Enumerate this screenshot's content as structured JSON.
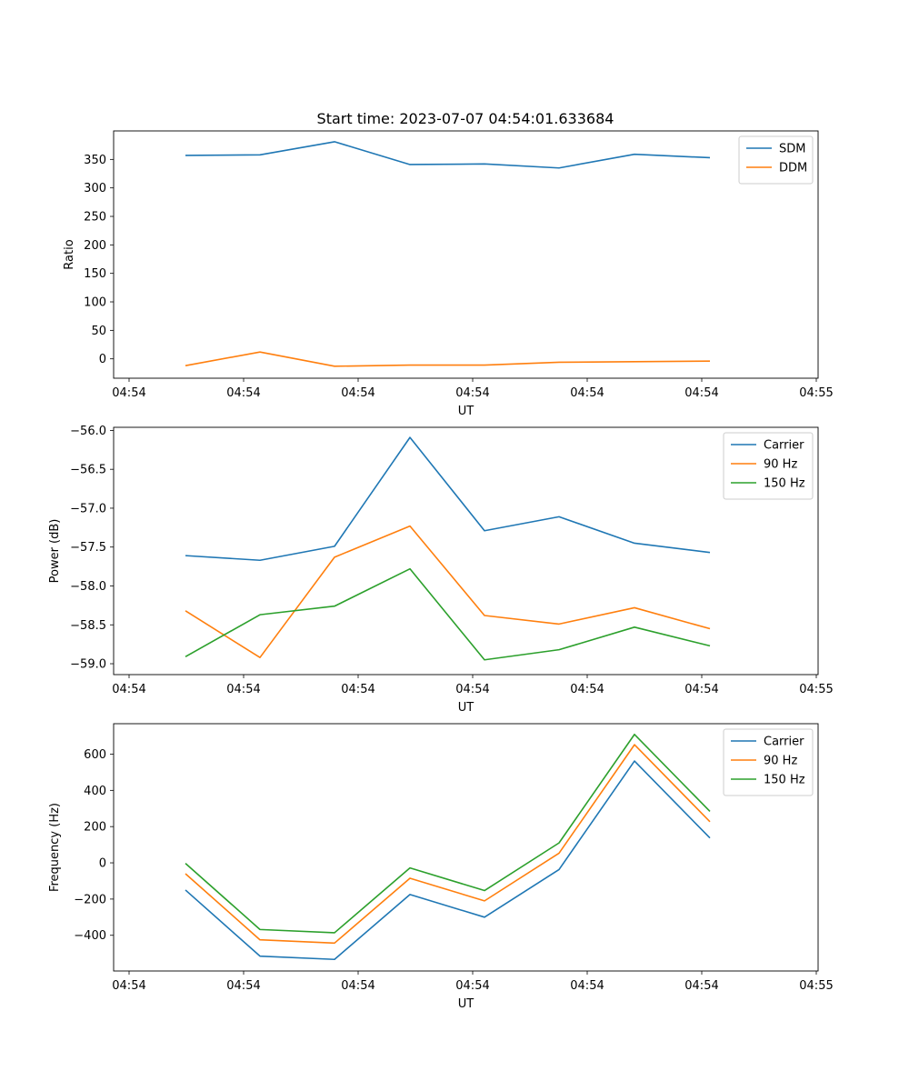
{
  "figure_title": "Start time: 2023-07-07 04:54:01.633684",
  "chart_data": [
    {
      "type": "line",
      "title": "",
      "xlabel": "UT",
      "ylabel": "Ratio",
      "x_tick_labels": [
        "04:54",
        "04:54",
        "04:54",
        "04:54",
        "04:54",
        "04:54",
        "04:54",
        "04:55"
      ],
      "ylim": [
        -34,
        400
      ],
      "y_ticks": [
        0,
        50,
        100,
        150,
        200,
        250,
        300,
        350
      ],
      "y_tick_decimals": 0,
      "legend_position": "top-right",
      "series": [
        {
          "name": "SDM",
          "color": "#1f77b4",
          "values": [
            357,
            358,
            381,
            341,
            342,
            335,
            359,
            353
          ]
        },
        {
          "name": "DDM",
          "color": "#ff7f0e",
          "values": [
            -12,
            12,
            -13,
            -11,
            -11,
            -6,
            -5,
            -4
          ]
        }
      ]
    },
    {
      "type": "line",
      "title": "",
      "xlabel": "UT",
      "ylabel": "Power (dB)",
      "x_tick_labels": [
        "04:54",
        "04:54",
        "04:54",
        "04:54",
        "04:54",
        "04:54",
        "04:54",
        "04:55"
      ],
      "ylim": [
        -59.14,
        -55.96
      ],
      "y_ticks": [
        -59.0,
        -58.5,
        -58.0,
        -57.5,
        -57.0,
        -56.5,
        -56.0
      ],
      "y_tick_decimals": 1,
      "legend_position": "top-right",
      "series": [
        {
          "name": "Carrier",
          "color": "#1f77b4",
          "values": [
            -57.61,
            -57.67,
            -57.49,
            -56.09,
            -57.29,
            -57.11,
            -57.45,
            -57.57
          ]
        },
        {
          "name": "90 Hz",
          "color": "#ff7f0e",
          "values": [
            -58.32,
            -58.92,
            -57.63,
            -57.23,
            -58.38,
            -58.49,
            -58.28,
            -58.55
          ]
        },
        {
          "name": "150 Hz",
          "color": "#2ca02c",
          "values": [
            -58.91,
            -58.37,
            -58.26,
            -57.78,
            -58.95,
            -58.82,
            -58.53,
            -58.77
          ]
        }
      ]
    },
    {
      "type": "line",
      "title": "",
      "xlabel": "UT",
      "ylabel": "Frequency (Hz)",
      "x_tick_labels": [
        "04:54",
        "04:54",
        "04:54",
        "04:54",
        "04:54",
        "04:54",
        "04:54",
        "04:55"
      ],
      "ylim": [
        -597,
        768
      ],
      "y_ticks": [
        -400,
        -200,
        0,
        200,
        400,
        600
      ],
      "y_tick_decimals": 0,
      "legend_position": "top-right",
      "series": [
        {
          "name": "Carrier",
          "color": "#1f77b4",
          "values": [
            -150,
            -515,
            -533,
            -175,
            -300,
            -37,
            562,
            137
          ]
        },
        {
          "name": "90 Hz",
          "color": "#ff7f0e",
          "values": [
            -60,
            -425,
            -443,
            -85,
            -210,
            53,
            652,
            227
          ]
        },
        {
          "name": "150 Hz",
          "color": "#2ca02c",
          "values": [
            -3,
            -368,
            -386,
            -28,
            -153,
            110,
            709,
            284
          ]
        }
      ]
    }
  ]
}
